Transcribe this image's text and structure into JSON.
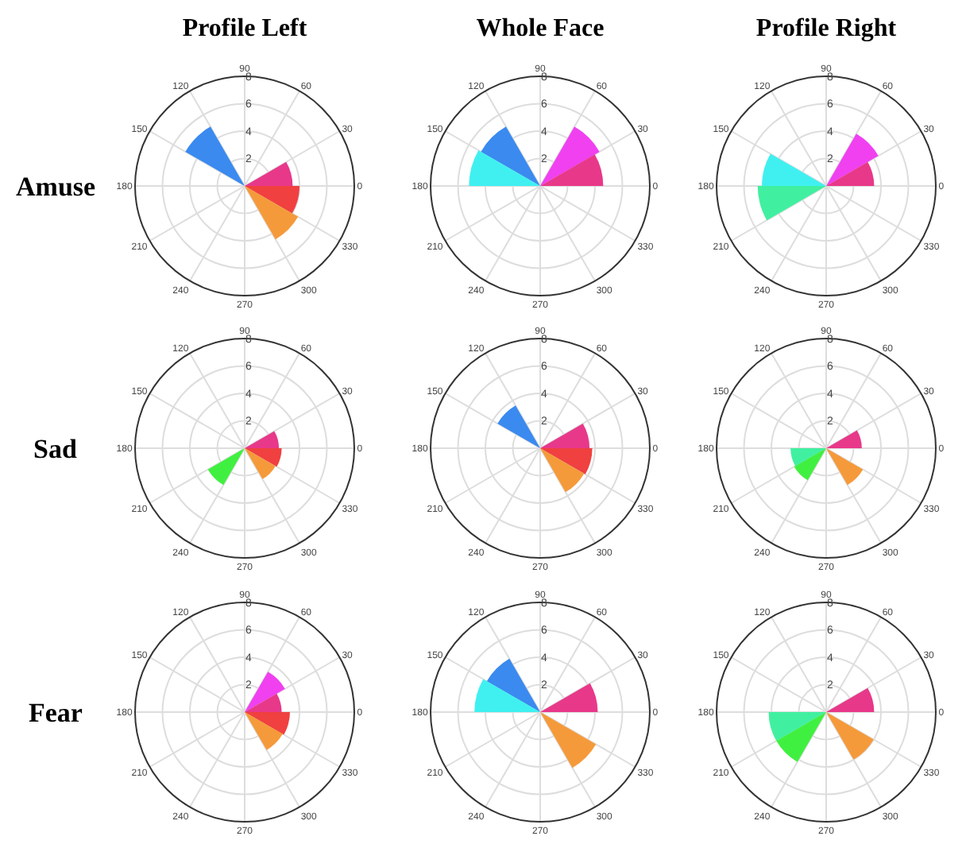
{
  "chart_data": [
    {
      "type": "radar",
      "title": "Profile Left",
      "ylabel": "Amuse",
      "categories": [
        "90",
        "60",
        "30",
        "0",
        "330",
        "300",
        "270",
        "240",
        "210",
        "180",
        "150",
        "120"
      ],
      "ylim": [
        0,
        8
      ],
      "yticks": [
        2,
        4,
        6,
        8
      ],
      "grid": true,
      "series": [
        {
          "type": "area",
          "color": "#3a8af0",
          "values": [
            null,
            null,
            null,
            null,
            null,
            null,
            null,
            null,
            null,
            null,
            5.0,
            5.0
          ]
        },
        {
          "type": "area",
          "color": "#e8388a",
          "values": [
            null,
            null,
            3.5,
            3.5,
            null,
            null,
            null,
            null,
            null,
            null,
            null,
            null
          ]
        },
        {
          "type": "area",
          "color": "#f04040",
          "values": [
            null,
            null,
            null,
            4.0,
            4.0,
            null,
            null,
            null,
            null,
            null,
            null,
            null
          ]
        },
        {
          "type": "area",
          "color": "#f59a3a",
          "values": [
            null,
            null,
            null,
            null,
            4.5,
            4.5,
            null,
            null,
            null,
            null,
            null,
            null
          ]
        }
      ]
    },
    {
      "type": "radar",
      "title": "Whole Face",
      "categories": [
        "90",
        "60",
        "30",
        "0",
        "330",
        "300",
        "270",
        "240",
        "210",
        "180",
        "150",
        "120"
      ],
      "ylim": [
        0,
        8
      ],
      "yticks": [
        2,
        4,
        6,
        8
      ],
      "grid": true,
      "series": [
        {
          "type": "area",
          "color": "#3a8af0",
          "values": [
            null,
            null,
            null,
            null,
            null,
            null,
            null,
            null,
            null,
            null,
            5.0,
            5.0
          ]
        },
        {
          "type": "area",
          "color": "#40f0f0",
          "values": [
            null,
            null,
            null,
            null,
            null,
            null,
            null,
            null,
            null,
            5.2,
            5.2,
            null
          ]
        },
        {
          "type": "area",
          "color": "#f040f0",
          "values": [
            null,
            5.0,
            5.0,
            null,
            null,
            null,
            null,
            null,
            null,
            null,
            null,
            null
          ]
        },
        {
          "type": "area",
          "color": "#e8388a",
          "values": [
            null,
            null,
            4.6,
            4.6,
            null,
            null,
            null,
            null,
            null,
            null,
            null,
            null
          ]
        }
      ]
    },
    {
      "type": "radar",
      "title": "Profile Right",
      "categories": [
        "90",
        "60",
        "30",
        "0",
        "330",
        "300",
        "270",
        "240",
        "210",
        "180",
        "150",
        "120"
      ],
      "ylim": [
        0,
        8
      ],
      "yticks": [
        2,
        4,
        6,
        8
      ],
      "grid": true,
      "series": [
        {
          "type": "area",
          "color": "#40f0f0",
          "values": [
            null,
            null,
            null,
            null,
            null,
            null,
            null,
            null,
            null,
            4.7,
            4.7,
            null
          ]
        },
        {
          "type": "area",
          "color": "#40f0a0",
          "values": [
            null,
            null,
            null,
            null,
            null,
            null,
            null,
            null,
            5.0,
            5.0,
            null,
            null
          ]
        },
        {
          "type": "area",
          "color": "#f040f0",
          "values": [
            null,
            4.4,
            4.4,
            null,
            null,
            null,
            null,
            null,
            null,
            null,
            null,
            null
          ]
        },
        {
          "type": "area",
          "color": "#e8388a",
          "values": [
            null,
            null,
            3.5,
            3.5,
            null,
            null,
            null,
            null,
            null,
            null,
            null,
            null
          ]
        }
      ]
    },
    {
      "type": "radar",
      "ylabel": "Sad",
      "categories": [
        "90",
        "60",
        "30",
        "0",
        "330",
        "300",
        "270",
        "240",
        "210",
        "180",
        "150",
        "120"
      ],
      "ylim": [
        0,
        8
      ],
      "yticks": [
        2,
        4,
        6,
        8
      ],
      "grid": true,
      "series": [
        {
          "type": "area",
          "color": "#e8388a",
          "values": [
            null,
            null,
            2.5,
            2.5,
            null,
            null,
            null,
            null,
            null,
            null,
            null,
            null
          ]
        },
        {
          "type": "area",
          "color": "#f04040",
          "values": [
            null,
            null,
            null,
            2.7,
            2.7,
            null,
            null,
            null,
            null,
            null,
            null,
            null
          ]
        },
        {
          "type": "area",
          "color": "#f59a3a",
          "values": [
            null,
            null,
            null,
            null,
            2.6,
            2.6,
            null,
            null,
            null,
            null,
            null,
            null
          ]
        },
        {
          "type": "area",
          "color": "#40f040",
          "values": [
            null,
            null,
            null,
            null,
            null,
            null,
            null,
            3.1,
            3.1,
            null,
            null,
            null
          ]
        }
      ]
    },
    {
      "type": "radar",
      "categories": [
        "90",
        "60",
        "30",
        "0",
        "330",
        "300",
        "270",
        "240",
        "210",
        "180",
        "150",
        "120"
      ],
      "ylim": [
        0,
        8
      ],
      "yticks": [
        2,
        4,
        6,
        8
      ],
      "grid": true,
      "series": [
        {
          "type": "area",
          "color": "#3a8af0",
          "values": [
            null,
            null,
            null,
            null,
            null,
            null,
            null,
            null,
            null,
            null,
            3.6,
            3.6
          ]
        },
        {
          "type": "area",
          "color": "#e8388a",
          "values": [
            null,
            null,
            3.6,
            3.6,
            null,
            null,
            null,
            null,
            null,
            null,
            null,
            null
          ]
        },
        {
          "type": "area",
          "color": "#f04040",
          "values": [
            null,
            null,
            null,
            3.8,
            3.8,
            null,
            null,
            null,
            null,
            null,
            null,
            null
          ]
        },
        {
          "type": "area",
          "color": "#f59a3a",
          "values": [
            null,
            null,
            null,
            null,
            3.7,
            3.7,
            null,
            null,
            null,
            null,
            null,
            null
          ]
        }
      ]
    },
    {
      "type": "radar",
      "categories": [
        "90",
        "60",
        "30",
        "0",
        "330",
        "300",
        "270",
        "240",
        "210",
        "180",
        "150",
        "120"
      ],
      "ylim": [
        0,
        8
      ],
      "yticks": [
        2,
        4,
        6,
        8
      ],
      "grid": true,
      "series": [
        {
          "type": "area",
          "color": "#e8388a",
          "values": [
            null,
            null,
            2.6,
            2.6,
            null,
            null,
            null,
            null,
            null,
            null,
            null,
            null
          ]
        },
        {
          "type": "area",
          "color": "#f59a3a",
          "values": [
            null,
            null,
            null,
            null,
            3.1,
            3.1,
            null,
            null,
            null,
            null,
            null,
            null
          ]
        },
        {
          "type": "area",
          "color": "#40f0a0",
          "values": [
            null,
            null,
            null,
            null,
            null,
            null,
            null,
            null,
            2.6,
            2.6,
            null,
            null
          ]
        },
        {
          "type": "area",
          "color": "#40f040",
          "values": [
            null,
            null,
            null,
            null,
            null,
            null,
            null,
            2.7,
            2.7,
            null,
            null,
            null
          ]
        }
      ]
    },
    {
      "type": "radar",
      "ylabel": "Fear",
      "categories": [
        "90",
        "60",
        "30",
        "0",
        "330",
        "300",
        "270",
        "240",
        "210",
        "180",
        "150",
        "120"
      ],
      "ylim": [
        0,
        8
      ],
      "yticks": [
        2,
        4,
        6,
        8
      ],
      "grid": true,
      "series": [
        {
          "type": "area",
          "color": "#f040f0",
          "values": [
            null,
            3.4,
            3.4,
            null,
            null,
            null,
            null,
            null,
            null,
            null,
            null,
            null
          ]
        },
        {
          "type": "area",
          "color": "#e8388a",
          "values": [
            null,
            null,
            2.7,
            2.7,
            null,
            null,
            null,
            null,
            null,
            null,
            null,
            null
          ]
        },
        {
          "type": "area",
          "color": "#f04040",
          "values": [
            null,
            null,
            null,
            3.3,
            3.3,
            null,
            null,
            null,
            null,
            null,
            null,
            null
          ]
        },
        {
          "type": "area",
          "color": "#f59a3a",
          "values": [
            null,
            null,
            null,
            null,
            3.2,
            3.2,
            null,
            null,
            null,
            null,
            null,
            null
          ]
        }
      ]
    },
    {
      "type": "radar",
      "categories": [
        "90",
        "60",
        "30",
        "0",
        "330",
        "300",
        "270",
        "240",
        "210",
        "180",
        "150",
        "120"
      ],
      "ylim": [
        0,
        8
      ],
      "yticks": [
        2,
        4,
        6,
        8
      ],
      "grid": true,
      "series": [
        {
          "type": "area",
          "color": "#3a8af0",
          "values": [
            null,
            null,
            null,
            null,
            null,
            null,
            null,
            null,
            null,
            null,
            4.5,
            4.5
          ]
        },
        {
          "type": "area",
          "color": "#40f0f0",
          "values": [
            null,
            null,
            null,
            null,
            null,
            null,
            null,
            null,
            null,
            4.8,
            4.8,
            null
          ]
        },
        {
          "type": "area",
          "color": "#e8388a",
          "values": [
            null,
            null,
            4.2,
            4.2,
            null,
            null,
            null,
            null,
            null,
            null,
            null,
            null
          ]
        },
        {
          "type": "area",
          "color": "#f59a3a",
          "values": [
            null,
            null,
            null,
            null,
            4.7,
            4.7,
            null,
            null,
            null,
            null,
            null,
            null
          ]
        }
      ]
    },
    {
      "type": "radar",
      "categories": [
        "90",
        "60",
        "30",
        "0",
        "330",
        "300",
        "270",
        "240",
        "210",
        "180",
        "150",
        "120"
      ],
      "ylim": [
        0,
        8
      ],
      "yticks": [
        2,
        4,
        6,
        8
      ],
      "grid": true,
      "series": [
        {
          "type": "area",
          "color": "#e8388a",
          "values": [
            null,
            null,
            3.5,
            3.5,
            null,
            null,
            null,
            null,
            null,
            null,
            null,
            null
          ]
        },
        {
          "type": "area",
          "color": "#f59a3a",
          "values": [
            null,
            null,
            null,
            null,
            4.0,
            4.0,
            null,
            null,
            null,
            null,
            null,
            null
          ]
        },
        {
          "type": "area",
          "color": "#40f0a0",
          "values": [
            null,
            null,
            null,
            null,
            null,
            null,
            null,
            null,
            4.2,
            4.2,
            null,
            null
          ]
        },
        {
          "type": "area",
          "color": "#40f040",
          "values": [
            null,
            null,
            null,
            null,
            null,
            null,
            null,
            4.2,
            4.2,
            null,
            null,
            null
          ]
        }
      ]
    }
  ]
}
